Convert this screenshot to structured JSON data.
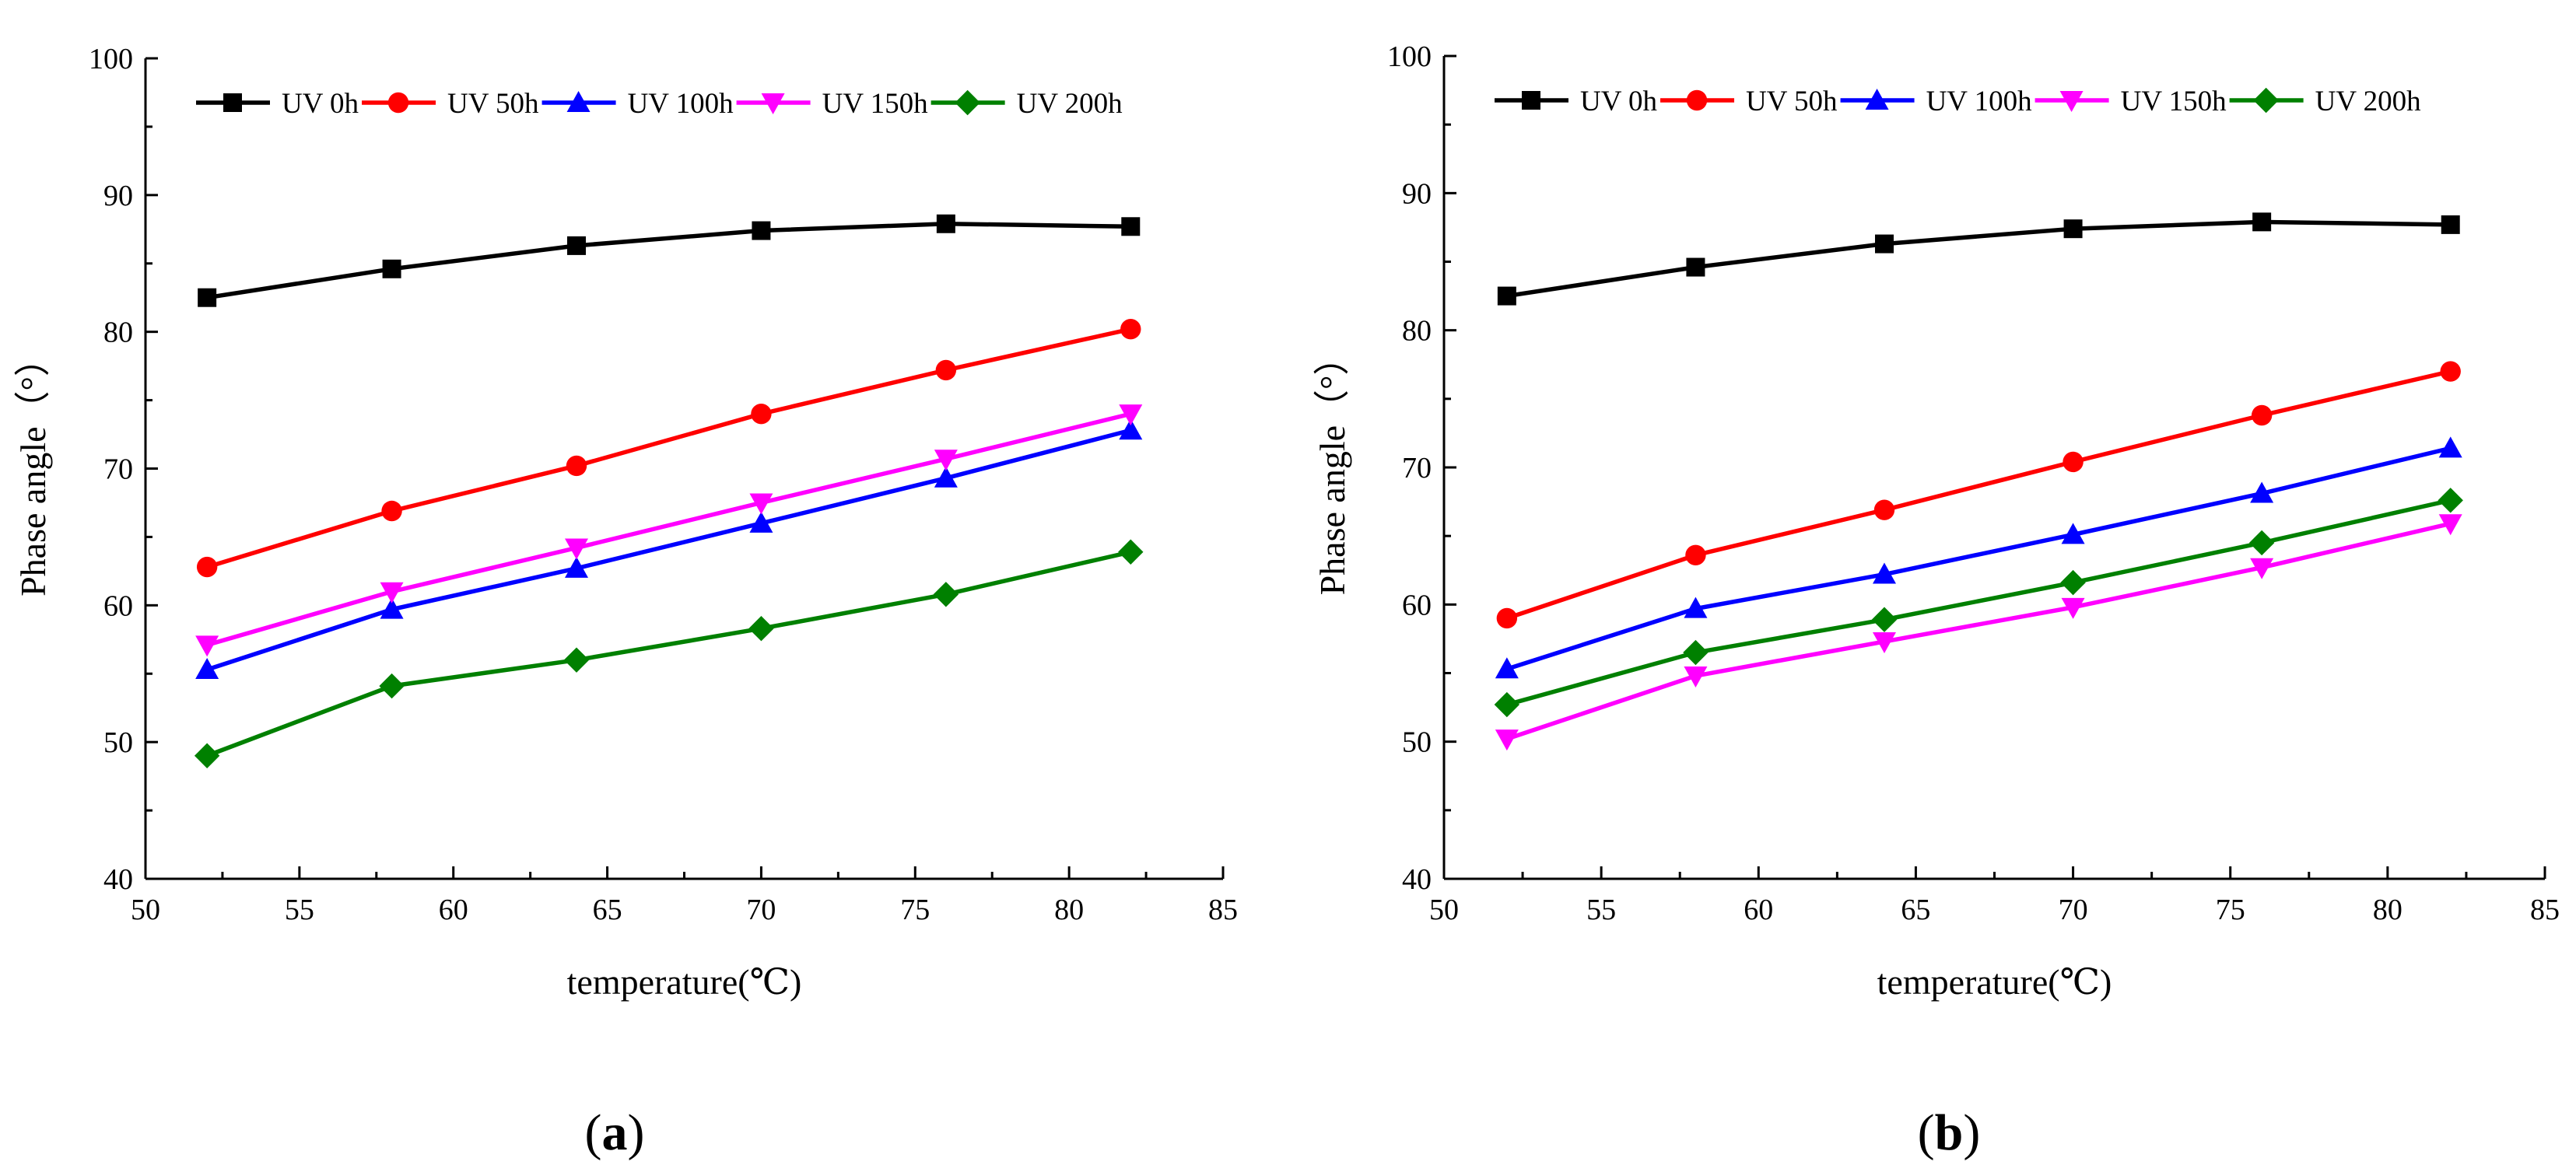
{
  "chart_data": [
    {
      "type": "line",
      "panel_label": "a",
      "xlabel": "temperature(℃)",
      "ylabel": "Phase angle（°）",
      "xlim": [
        50,
        85
      ],
      "ylim": [
        40,
        100
      ],
      "xticks": [
        50,
        55,
        60,
        65,
        70,
        75,
        80,
        85
      ],
      "yticks": [
        40,
        50,
        60,
        70,
        80,
        90,
        100
      ],
      "x": [
        52,
        58,
        64,
        70,
        76,
        82
      ],
      "legend_position": "top",
      "grid": false,
      "series": [
        {
          "name": "UV 0h",
          "color": "#000000",
          "marker": "square",
          "values": [
            82.5,
            84.6,
            86.3,
            87.4,
            87.9,
            87.7
          ]
        },
        {
          "name": "UV 50h",
          "color": "#ff0000",
          "marker": "circle",
          "values": [
            62.8,
            66.9,
            70.2,
            74.0,
            77.2,
            80.2
          ]
        },
        {
          "name": "UV 100h",
          "color": "#0000ff",
          "marker": "triangle-up",
          "values": [
            55.3,
            59.7,
            62.7,
            66.0,
            69.3,
            72.8
          ]
        },
        {
          "name": "UV 150h",
          "color": "#ff00ff",
          "marker": "triangle-down",
          "values": [
            57.1,
            61.0,
            64.2,
            67.5,
            70.7,
            74.0
          ]
        },
        {
          "name": "UV 200h",
          "color": "#008000",
          "marker": "diamond",
          "values": [
            49.0,
            54.1,
            56.0,
            58.3,
            60.8,
            63.9
          ]
        }
      ]
    },
    {
      "type": "line",
      "panel_label": "b",
      "xlabel": "temperature(℃)",
      "ylabel": "Phase angle（°）",
      "xlim": [
        50,
        85
      ],
      "ylim": [
        40,
        100
      ],
      "xticks": [
        50,
        55,
        60,
        65,
        70,
        75,
        80,
        85
      ],
      "yticks": [
        40,
        50,
        60,
        70,
        80,
        90,
        100
      ],
      "x": [
        52,
        58,
        64,
        70,
        76,
        82
      ],
      "legend_position": "top",
      "grid": false,
      "series": [
        {
          "name": "UV 0h",
          "color": "#000000",
          "marker": "square",
          "values": [
            82.5,
            84.6,
            86.3,
            87.4,
            87.9,
            87.7
          ]
        },
        {
          "name": "UV 50h",
          "color": "#ff0000",
          "marker": "circle",
          "values": [
            59.0,
            63.6,
            66.9,
            70.4,
            73.8,
            77.0
          ]
        },
        {
          "name": "UV 100h",
          "color": "#0000ff",
          "marker": "triangle-up",
          "values": [
            55.3,
            59.7,
            62.2,
            65.1,
            68.1,
            71.4
          ]
        },
        {
          "name": "UV 150h",
          "color": "#ff00ff",
          "marker": "triangle-down",
          "values": [
            50.2,
            54.8,
            57.3,
            59.8,
            62.7,
            65.9
          ]
        },
        {
          "name": "UV 200h",
          "color": "#008000",
          "marker": "diamond",
          "values": [
            52.7,
            56.5,
            58.9,
            61.6,
            64.5,
            67.6
          ]
        }
      ]
    }
  ]
}
